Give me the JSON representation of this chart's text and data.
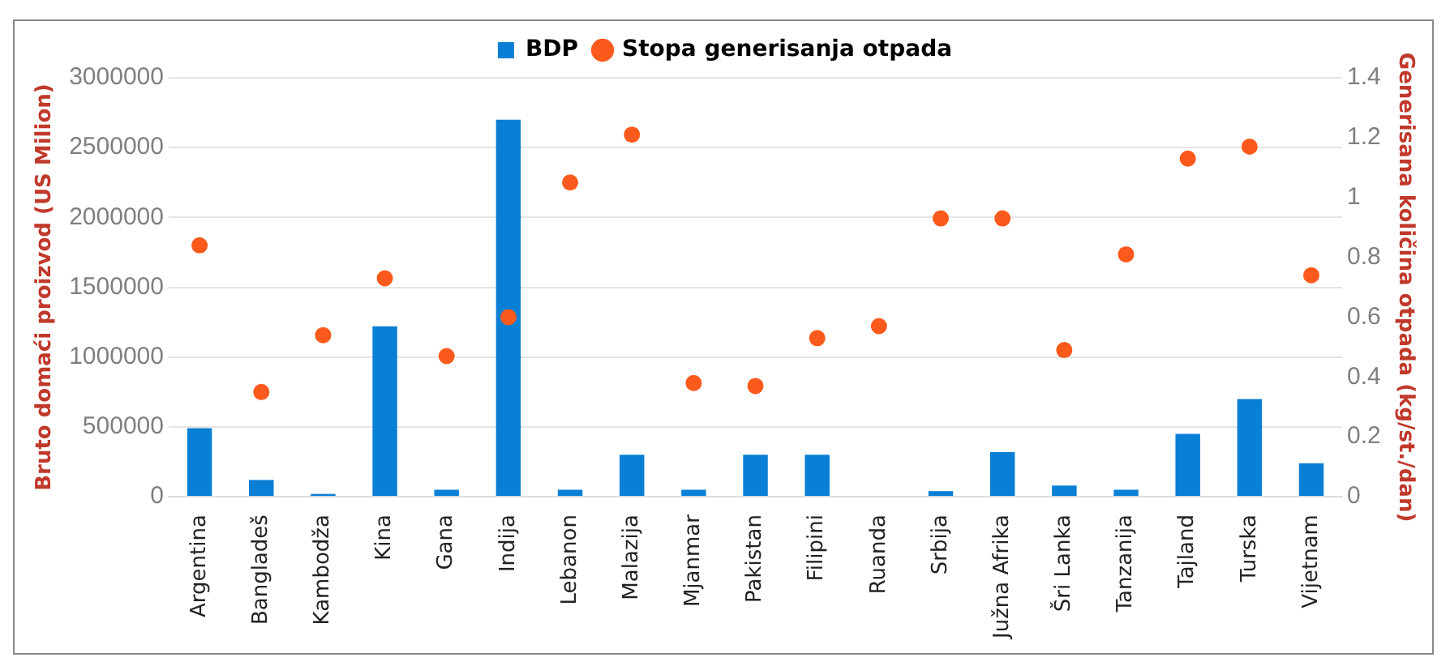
{
  "chart_data": {
    "type": "bar",
    "ylabel": "Bruto domaći proizvod (US Milion)",
    "y2label": "Generisana količina otpada (kg/st./dan)",
    "categories": [
      "Argentina",
      "Bangladeš",
      "Kambodža",
      "Kina",
      "Gana",
      "Indija",
      "Lebanon",
      "Malazija",
      "Mjanmar",
      "Pakistan",
      "Filipini",
      "Ruanda",
      "Srbija",
      "Južna Afrika",
      "Šri Lanka",
      "Tanzanija",
      "Tajland",
      "Turska",
      "Vijetnam"
    ],
    "series": [
      {
        "name": "BDP",
        "color": "#0a7fd6",
        "values": [
          490000,
          120000,
          20000,
          1220000,
          50000,
          2700000,
          50000,
          300000,
          50000,
          300000,
          300000,
          0,
          40000,
          320000,
          80000,
          50000,
          450000,
          700000,
          240000
        ]
      },
      {
        "name": "Stopa generisanja otpada",
        "type": "scatter",
        "axis": "y2",
        "color": "#fb5a1c",
        "values": [
          0.84,
          0.35,
          0.54,
          0.73,
          0.47,
          0.6,
          1.05,
          1.21,
          0.38,
          0.37,
          0.53,
          0.57,
          0.93,
          0.93,
          0.49,
          0.81,
          1.13,
          1.17,
          0.74
        ]
      }
    ],
    "ylim": [
      0,
      3000000
    ],
    "yticks": [
      0,
      500000,
      1000000,
      1500000,
      2000000,
      2500000,
      3000000
    ],
    "y2lim": [
      0,
      1.4
    ],
    "y2ticks": [
      0,
      0.2,
      0.4,
      0.6,
      0.8,
      1,
      1.2,
      1.4
    ],
    "grid": "y",
    "legend": "top",
    "marker": "circle"
  }
}
